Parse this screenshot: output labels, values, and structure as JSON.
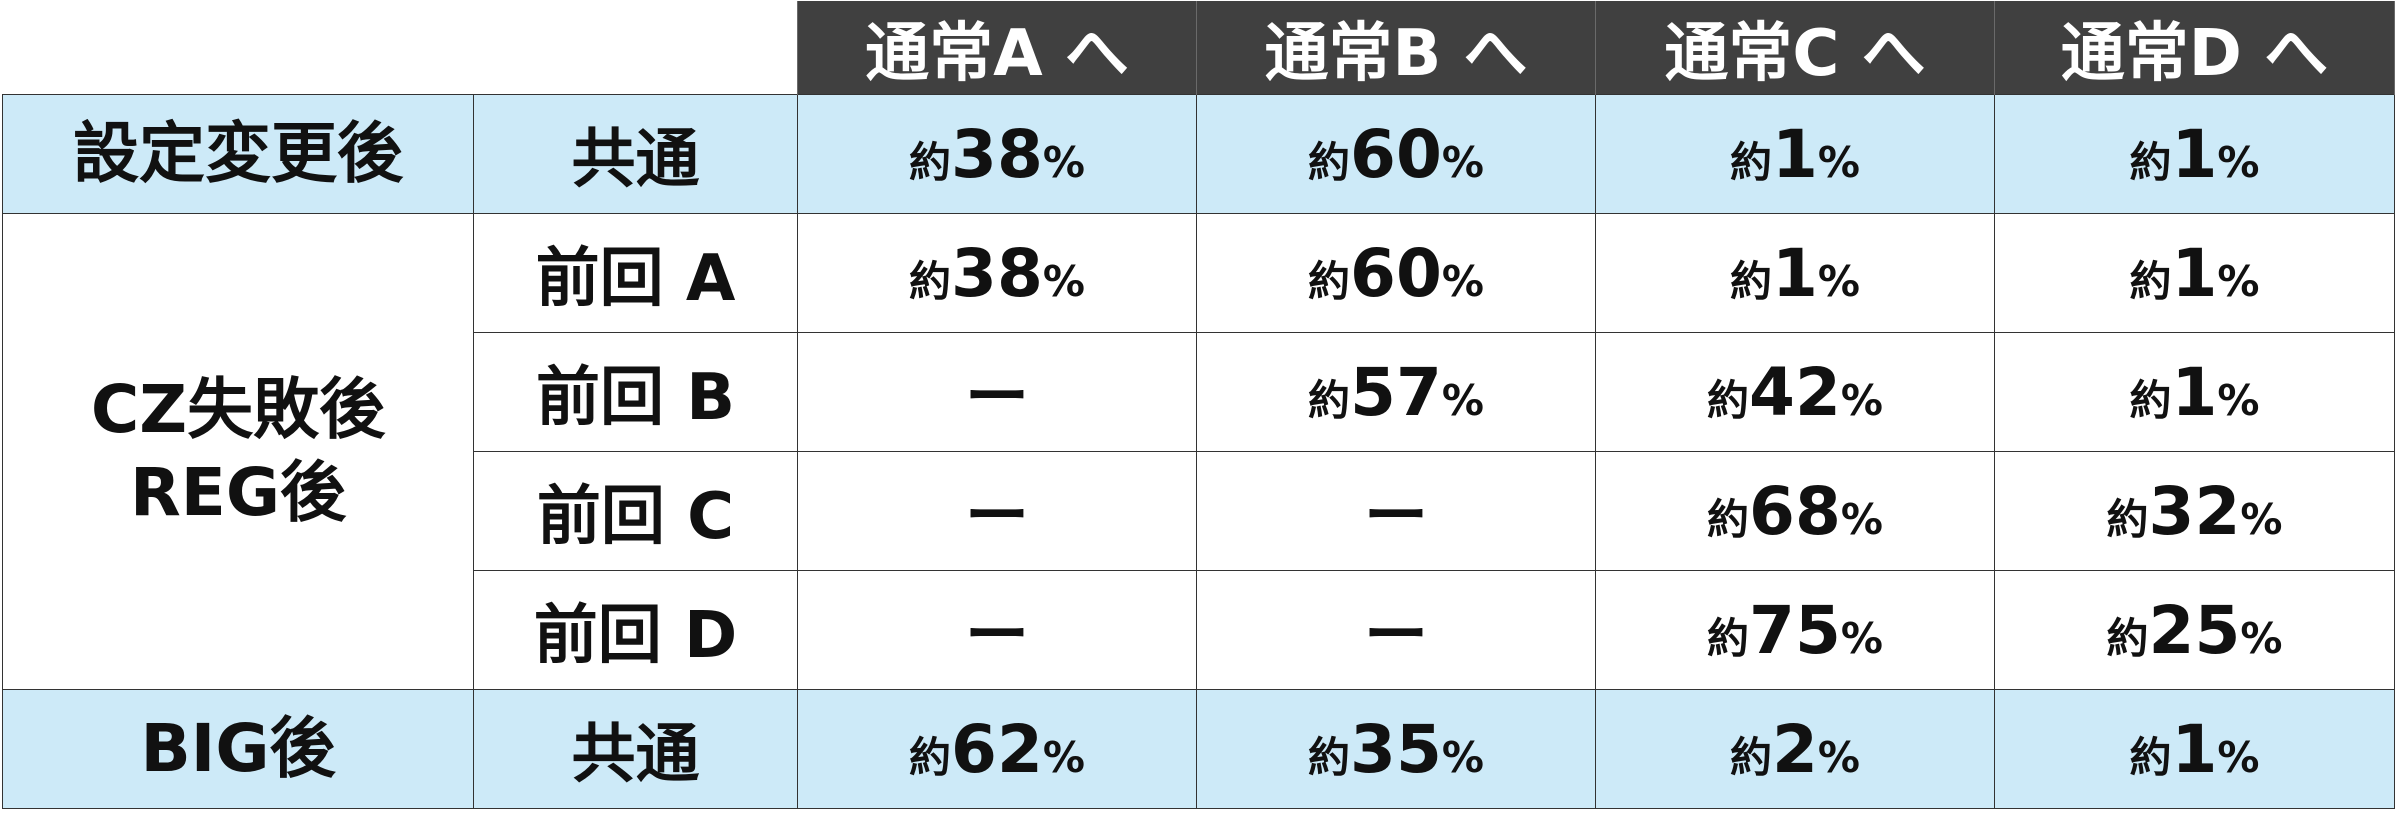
{
  "table": {
    "headers": [
      "通常A へ",
      "通常B へ",
      "通常C へ",
      "通常D へ"
    ],
    "approx_prefix": "約",
    "percent_sign": "%",
    "dash": "ー",
    "rows": [
      {
        "group": "設定変更後",
        "sub": "共通",
        "values": [
          "38",
          "60",
          "1",
          "1"
        ]
      },
      {
        "group": "CZ失敗後\nREG後",
        "sub": "前回 A",
        "values": [
          "38",
          "60",
          "1",
          "1"
        ]
      },
      {
        "sub": "前回 B",
        "values": [
          "ー",
          "57",
          "42",
          "1"
        ]
      },
      {
        "sub": "前回 C",
        "values": [
          "ー",
          "ー",
          "68",
          "32"
        ]
      },
      {
        "sub": "前回 D",
        "values": [
          "ー",
          "ー",
          "75",
          "25"
        ]
      },
      {
        "group": "BIG後",
        "sub": "共通",
        "values": [
          "62",
          "35",
          "2",
          "1"
        ]
      }
    ]
  },
  "colors": {
    "header_bg": "#404040",
    "header_text": "#ffffff",
    "highlight_row_bg": "#cdeaf8",
    "grid_line": "#333333"
  }
}
